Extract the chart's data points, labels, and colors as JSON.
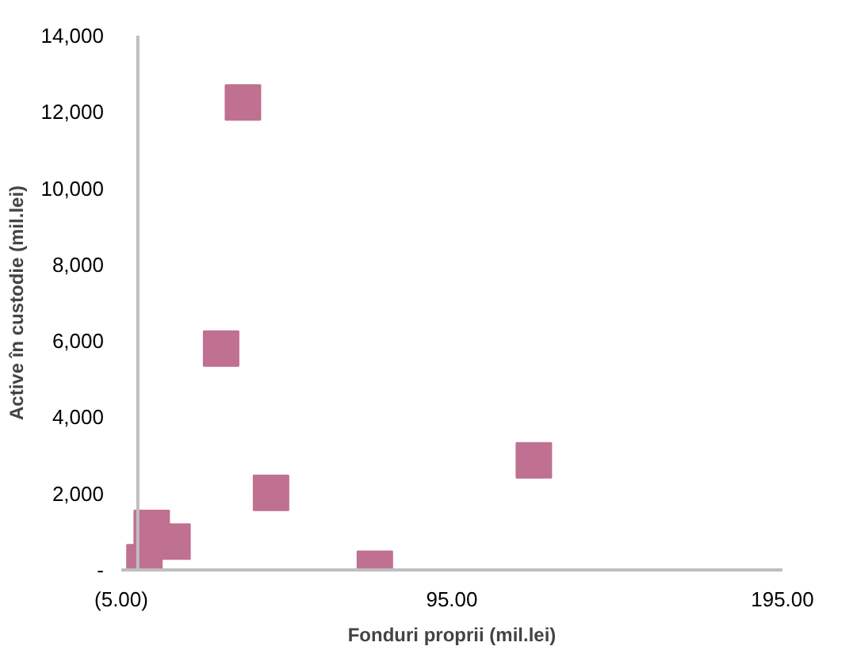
{
  "chart_data": {
    "type": "scatter",
    "xlabel": "Fonduri proprii (mil.lei)",
    "ylabel": "Active în custodie (mil.lei)",
    "x": [
      31.8,
      25.2,
      40.3,
      119.8,
      71.7,
      4.2,
      10.5,
      2.0
    ],
    "series": [
      {
        "color": "#c07090",
        "values": [
          12250,
          5800,
          2020,
          2870,
          30,
          1100,
          740,
          200
        ]
      }
    ],
    "xlim": [
      -5,
      195
    ],
    "xticks": [
      {
        "value": -5,
        "label": "(5.00)"
      },
      {
        "value": 95,
        "label": "95.00"
      },
      {
        "value": 195,
        "label": "195.00"
      }
    ],
    "ylim": [
      0,
      14000
    ],
    "yticks": [
      {
        "value": 0,
        "label": "-"
      },
      {
        "value": 2000,
        "label": "2,000"
      },
      {
        "value": 4000,
        "label": "4,000"
      },
      {
        "value": 6000,
        "label": "6,000"
      },
      {
        "value": 8000,
        "label": "8,000"
      },
      {
        "value": 10000,
        "label": "10,000"
      },
      {
        "value": 12000,
        "label": "12,000"
      },
      {
        "value": 14000,
        "label": "14,000"
      }
    ],
    "marker": "square",
    "grid": false
  }
}
